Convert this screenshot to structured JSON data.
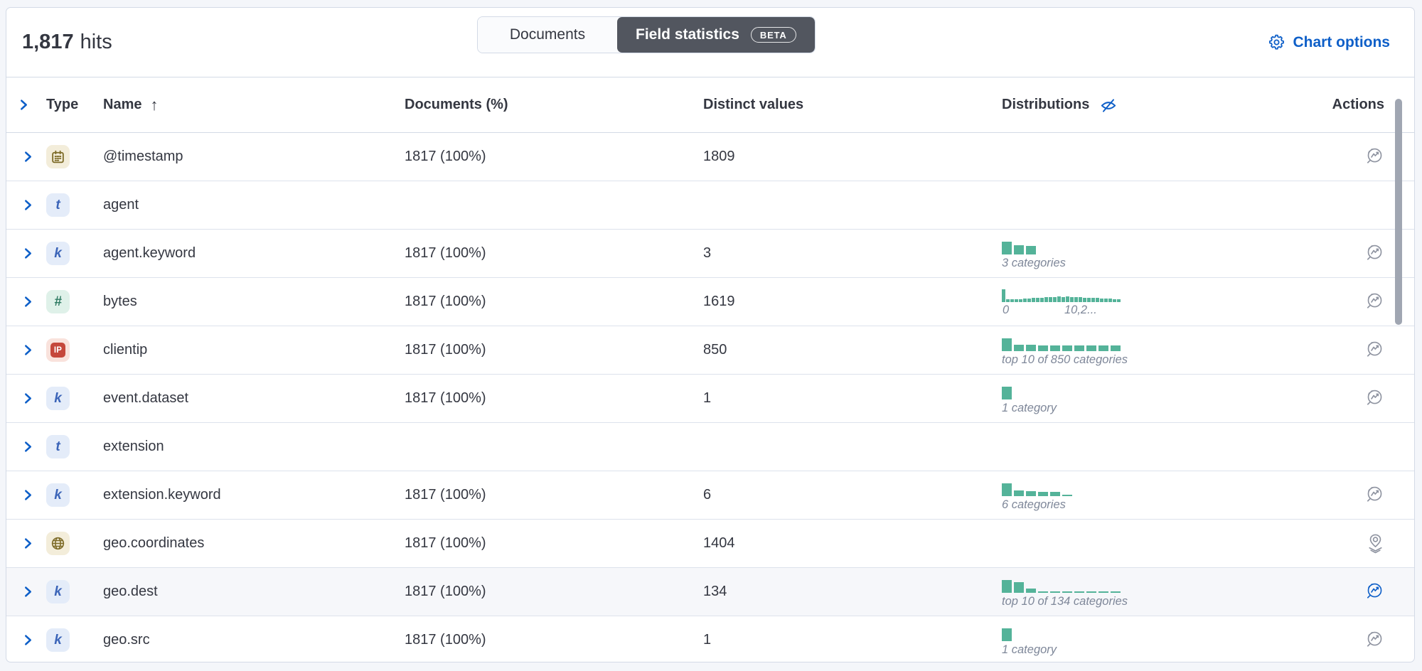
{
  "colors": {
    "accent_blue": "#0e5fc8",
    "chart_green": "#54b399",
    "toggle_selected_bg": "#52565f",
    "panel_border": "#d3dae6",
    "text": "#343741",
    "muted_label": "#7e8799",
    "action_icon_gray": "#8e93a0"
  },
  "header": {
    "hits_count": "1,817",
    "hits_label": "hits",
    "toggle": {
      "documents": "Documents",
      "field_statistics": "Field statistics",
      "beta": "BETA"
    },
    "chart_options_label": "Chart options",
    "gear_icon": "gear-icon"
  },
  "table": {
    "columns": {
      "type": "Type",
      "name": "Name",
      "sort_arrow": "↑",
      "documents": "Documents (%)",
      "distinct": "Distinct values",
      "distributions": "Distributions",
      "actions": "Actions"
    },
    "type_badges": {
      "date": {
        "icon": "calendar-icon",
        "style": "badge-tan"
      },
      "text": {
        "glyph": "t",
        "style": "badge-blue"
      },
      "keyword": {
        "glyph": "k",
        "style": "badge-blue"
      },
      "number": {
        "glyph": "#",
        "style": "badge-green"
      },
      "ip": {
        "glyph": "IP",
        "style": "badge-red"
      },
      "geo_point": {
        "icon": "globe-icon",
        "style": "badge-tan"
      }
    },
    "rows": [
      {
        "name": "@timestamp",
        "type": "date",
        "documents": "1817 (100%)",
        "distinct": "1809",
        "dist": null,
        "action": "lens",
        "active": false
      },
      {
        "name": "agent",
        "type": "text",
        "documents": "",
        "distinct": "",
        "dist": null,
        "action": null,
        "active": false
      },
      {
        "name": "agent.keyword",
        "type": "keyword",
        "documents": "1817 (100%)",
        "distinct": "3",
        "dist": {
          "kind": "bars",
          "bars": [
            1,
            0.7,
            0.62
          ],
          "label": "3 categories"
        },
        "action": "lens",
        "active": false
      },
      {
        "name": "bytes",
        "type": "number",
        "documents": "1817 (100%)",
        "distinct": "1619",
        "dist": {
          "kind": "histogram",
          "bars": [
            1,
            0.2,
            0.17,
            0.18,
            0.2,
            0.23,
            0.25,
            0.28,
            0.3,
            0.33,
            0.35,
            0.37,
            0.38,
            0.4,
            0.38,
            0.4,
            0.37,
            0.35,
            0.36,
            0.33,
            0.3,
            0.3,
            0.28,
            0.26,
            0.25,
            0.24,
            0.22,
            0.2
          ],
          "xlabels": [
            "0",
            "10,2..."
          ]
        },
        "action": "lens",
        "active": false
      },
      {
        "name": "clientip",
        "type": "ip",
        "documents": "1817 (100%)",
        "distinct": "850",
        "dist": {
          "kind": "bars",
          "bars": [
            1,
            0.5,
            0.48,
            0.42,
            0.4,
            0.4,
            0.44,
            0.42,
            0.4,
            0.44
          ],
          "label": "top 10 of 850 categories"
        },
        "action": "lens",
        "active": false
      },
      {
        "name": "event.dataset",
        "type": "keyword",
        "documents": "1817 (100%)",
        "distinct": "1",
        "dist": {
          "kind": "bars",
          "bars": [
            1
          ],
          "label": "1 category"
        },
        "action": "lens",
        "active": false
      },
      {
        "name": "extension",
        "type": "text",
        "documents": "",
        "distinct": "",
        "dist": null,
        "action": null,
        "active": false
      },
      {
        "name": "extension.keyword",
        "type": "keyword",
        "documents": "1817 (100%)",
        "distinct": "6",
        "dist": {
          "kind": "bars",
          "bars": [
            1,
            0.42,
            0.38,
            0.3,
            0.3,
            0.1
          ],
          "label": "6 categories"
        },
        "action": "lens",
        "active": false
      },
      {
        "name": "geo.coordinates",
        "type": "geo_point",
        "documents": "1817 (100%)",
        "distinct": "1404",
        "dist": null,
        "action": "maps",
        "active": false
      },
      {
        "name": "geo.dest",
        "type": "keyword",
        "documents": "1817 (100%)",
        "distinct": "134",
        "dist": {
          "kind": "bars",
          "bars": [
            1,
            0.78,
            0.32,
            0.1,
            0.09,
            0.09,
            0.09,
            0.09,
            0.08,
            0.08
          ],
          "label": "top 10 of 134 categories"
        },
        "action": "lens",
        "active": true
      },
      {
        "name": "geo.src",
        "type": "keyword",
        "documents": "1817 (100%)",
        "distinct": "1",
        "dist": {
          "kind": "bars",
          "bars": [
            1
          ],
          "label": "1 category"
        },
        "action": "lens",
        "active": false
      }
    ]
  }
}
